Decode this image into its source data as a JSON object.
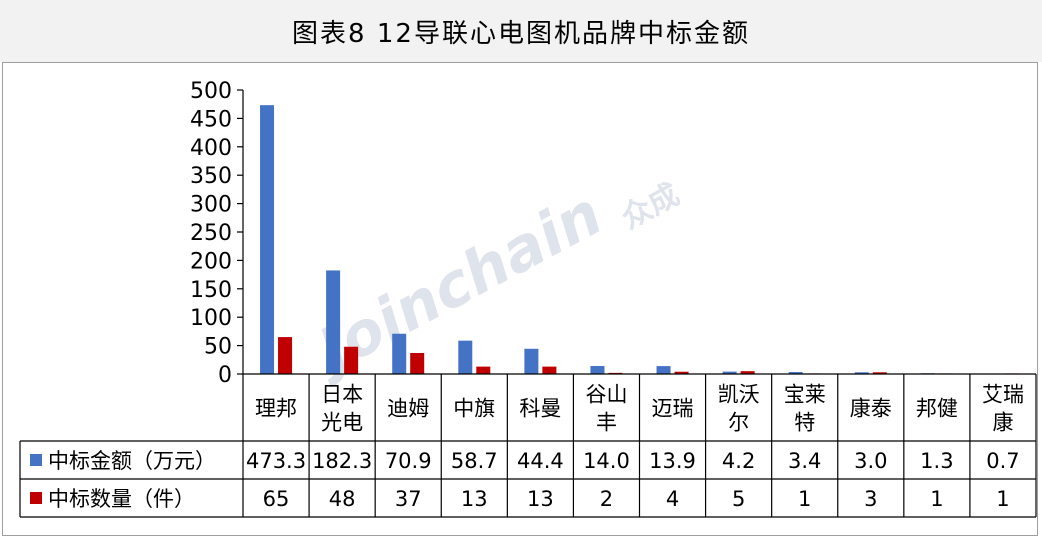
{
  "title": "图表8  12导联心电图机品牌中标金额",
  "watermark": {
    "brand": "Joinchain",
    "cn": "众成"
  },
  "colors": {
    "amount": "#4472c4",
    "count": "#c00000"
  },
  "chart_data": {
    "type": "bar",
    "categories": [
      [
        "理邦"
      ],
      [
        "日本",
        "光电"
      ],
      [
        "迪姆"
      ],
      [
        "中旗"
      ],
      [
        "科曼"
      ],
      [
        "谷山",
        "丰"
      ],
      [
        "迈瑞"
      ],
      [
        "凯沃",
        "尔"
      ],
      [
        "宝莱",
        "特"
      ],
      [
        "康泰"
      ],
      [
        "邦健"
      ],
      [
        "艾瑞",
        "康"
      ]
    ],
    "series": [
      {
        "name": "中标金额（万元）",
        "values": [
          473.3,
          182.3,
          70.9,
          58.7,
          44.4,
          14.0,
          13.9,
          4.2,
          3.4,
          3.0,
          1.3,
          0.7
        ],
        "display": [
          "473.3",
          "182.3",
          "70.9",
          "58.7",
          "44.4",
          "14.0",
          "13.9",
          "4.2",
          "3.4",
          "3.0",
          "1.3",
          "0.7"
        ]
      },
      {
        "name": "中标数量（件）",
        "values": [
          65,
          48,
          37,
          13,
          13,
          2,
          4,
          5,
          1,
          3,
          1,
          1
        ],
        "display": [
          "65",
          "48",
          "37",
          "13",
          "13",
          "2",
          "4",
          "5",
          "1",
          "3",
          "1",
          "1"
        ]
      }
    ],
    "ylim": [
      0,
      500
    ],
    "yticks": [
      0,
      50,
      100,
      150,
      200,
      250,
      300,
      350,
      400,
      450,
      500
    ],
    "legend": "data-table"
  }
}
